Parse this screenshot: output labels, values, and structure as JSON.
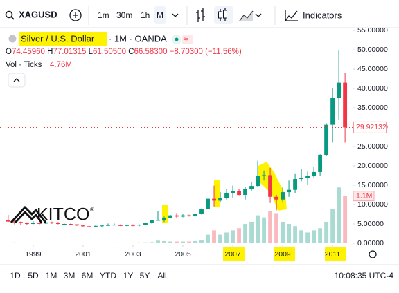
{
  "toolbar": {
    "symbol": "XAGUSD",
    "intervals": [
      "1m",
      "30m",
      "1h",
      "M"
    ],
    "indicators": "Indicators"
  },
  "legend": {
    "title": "Silver / U.S. Dollar",
    "source": "· 1M · OANDA",
    "ohlc": [
      {
        "k": "O",
        "v": "74.45960"
      },
      {
        "k": "H",
        "v": "77.01315"
      },
      {
        "k": "L",
        "v": "61.50500"
      },
      {
        "k": "C",
        "v": "66.58300"
      }
    ],
    "change": "−8.70300 (−11.56%)",
    "volume_title": "Vol · Ticks",
    "volume_value": "4.76M"
  },
  "logo": {
    "text": "KITCO",
    "mark": "®"
  },
  "footer": {
    "ranges": [
      "1D",
      "5D",
      "1M",
      "3M",
      "6M",
      "YTD",
      "1Y",
      "5Y",
      "All"
    ],
    "clock": "10:08:35 UTC-4"
  },
  "chart_data": {
    "type": "candlestick",
    "up_color": "#089981",
    "down_color": "#f23645",
    "x": [
      1998,
      1998.25,
      1998.5,
      1998.75,
      1999,
      1999.25,
      1999.5,
      1999.75,
      2000,
      2000.25,
      2000.5,
      2000.75,
      2001,
      2001.25,
      2001.5,
      2001.75,
      2002,
      2002.25,
      2002.5,
      2002.75,
      2003,
      2003.25,
      2003.5,
      2003.75,
      2004,
      2004.25,
      2004.5,
      2004.75,
      2005,
      2005.25,
      2005.5,
      2005.75,
      2006,
      2006.25,
      2006.5,
      2006.75,
      2007,
      2007.25,
      2007.5,
      2007.75,
      2008,
      2008.25,
      2008.5,
      2008.75,
      2009,
      2009.25,
      2009.5,
      2009.75,
      2010,
      2010.25,
      2010.5,
      2010.75,
      2011,
      2011.25,
      2011.5
    ],
    "open": [
      5.9,
      5.6,
      5.5,
      5.2,
      5.0,
      5.2,
      5.1,
      5.4,
      5.3,
      5.0,
      5.0,
      4.9,
      4.6,
      4.4,
      4.3,
      4.5,
      4.6,
      4.7,
      4.8,
      4.5,
      4.7,
      4.6,
      4.8,
      5.2,
      5.9,
      6.0,
      6.6,
      7.2,
      6.9,
      7.2,
      7.1,
      7.5,
      8.9,
      11.5,
      11.0,
      11.6,
      13.0,
      13.5,
      12.5,
      14.1,
      14.8,
      17.5,
      17.6,
      12.0,
      11.3,
      13.2,
      13.8,
      16.6,
      16.9,
      17.5,
      18.4,
      22.7,
      30.6,
      37.5,
      41.5
    ],
    "high": [
      7.3,
      6.0,
      5.6,
      5.4,
      5.7,
      5.4,
      5.6,
      5.6,
      5.5,
      5.1,
      5.1,
      4.9,
      4.8,
      4.5,
      4.6,
      4.6,
      5.1,
      5.1,
      4.9,
      4.7,
      4.9,
      4.9,
      5.3,
      6.0,
      8.3,
      6.9,
      7.3,
      7.8,
      7.5,
      7.4,
      7.6,
      9.0,
      11.5,
      14.9,
      13.2,
      14.0,
      14.9,
      14.0,
      14.5,
      15.9,
      21.3,
      18.8,
      19.5,
      12.5,
      14.5,
      16.2,
      17.9,
      19.3,
      18.5,
      19.8,
      23.0,
      31.0,
      40.0,
      49.8,
      44.0
    ],
    "low": [
      5.5,
      4.9,
      4.8,
      4.8,
      4.9,
      4.9,
      5.0,
      5.0,
      4.9,
      4.9,
      4.8,
      4.5,
      4.3,
      4.2,
      4.2,
      4.1,
      4.5,
      4.6,
      4.4,
      4.4,
      4.4,
      4.4,
      4.7,
      5.1,
      5.8,
      5.5,
      6.4,
      6.5,
      6.7,
      6.9,
      6.9,
      7.4,
      8.8,
      9.5,
      10.5,
      11.3,
      11.8,
      12.4,
      11.3,
      13.5,
      14.5,
      16.2,
      10.4,
      8.5,
      10.5,
      12.0,
      13.0,
      16.0,
      15.1,
      17.0,
      17.4,
      22.5,
      26.0,
      32.0,
      26.0
    ],
    "close": [
      5.6,
      5.5,
      5.2,
      5.0,
      5.2,
      5.1,
      5.4,
      5.3,
      5.0,
      5.0,
      4.9,
      4.6,
      4.4,
      4.3,
      4.5,
      4.6,
      4.7,
      4.8,
      4.5,
      4.7,
      4.6,
      4.8,
      5.2,
      5.9,
      6.0,
      6.6,
      7.2,
      6.9,
      7.2,
      7.1,
      7.5,
      8.9,
      11.5,
      11.0,
      11.6,
      13.0,
      13.5,
      12.5,
      14.1,
      14.8,
      17.5,
      17.6,
      12.0,
      11.3,
      13.2,
      13.8,
      16.6,
      16.9,
      17.5,
      18.4,
      22.7,
      30.6,
      37.5,
      41.5,
      29.92132
    ],
    "volume": [
      15000,
      18000,
      16000,
      14000,
      15000,
      14000,
      16000,
      15000,
      14000,
      13000,
      14000,
      15000,
      16000,
      15000,
      14000,
      15000,
      16000,
      17000,
      15000,
      16000,
      17000,
      18000,
      20000,
      25000,
      60000,
      50000,
      40000,
      40000,
      40000,
      40000,
      50000,
      80000,
      200000,
      300000,
      200000,
      250000,
      300000,
      350000,
      450000,
      500000,
      650000,
      600000,
      750000,
      700000,
      500000,
      450000,
      400000,
      300000,
      250000,
      300000,
      350000,
      500000,
      800000,
      1300000,
      1100000
    ],
    "volume_lim": [
      0,
      1400000
    ],
    "volume_label": {
      "value": 1100000,
      "label": "1.1M"
    },
    "price_marker": 29.92132,
    "xlim": [
      1997.67,
      2011.83
    ],
    "xticks": [
      1999,
      2001,
      2003,
      2005,
      2007,
      2009,
      2011
    ],
    "ylim": [
      0,
      55
    ],
    "yticks": [
      {
        "value": 0,
        "label": "0.00000"
      },
      {
        "value": 5,
        "label": "5.00000"
      },
      {
        "value": 10,
        "label": "10.00000"
      },
      {
        "value": 15,
        "label": "15.00000"
      },
      {
        "value": 20,
        "label": "20.00000"
      },
      {
        "value": 25,
        "label": "25.00000"
      },
      {
        "value": 30,
        "label": "30.00000"
      },
      {
        "value": 35,
        "label": "35.00000"
      },
      {
        "value": 40,
        "label": "40.00000"
      },
      {
        "value": 45,
        "label": "45.00000"
      },
      {
        "value": 50,
        "label": "50.00000"
      },
      {
        "value": 55,
        "label": "55.00000"
      }
    ],
    "grid": false
  }
}
